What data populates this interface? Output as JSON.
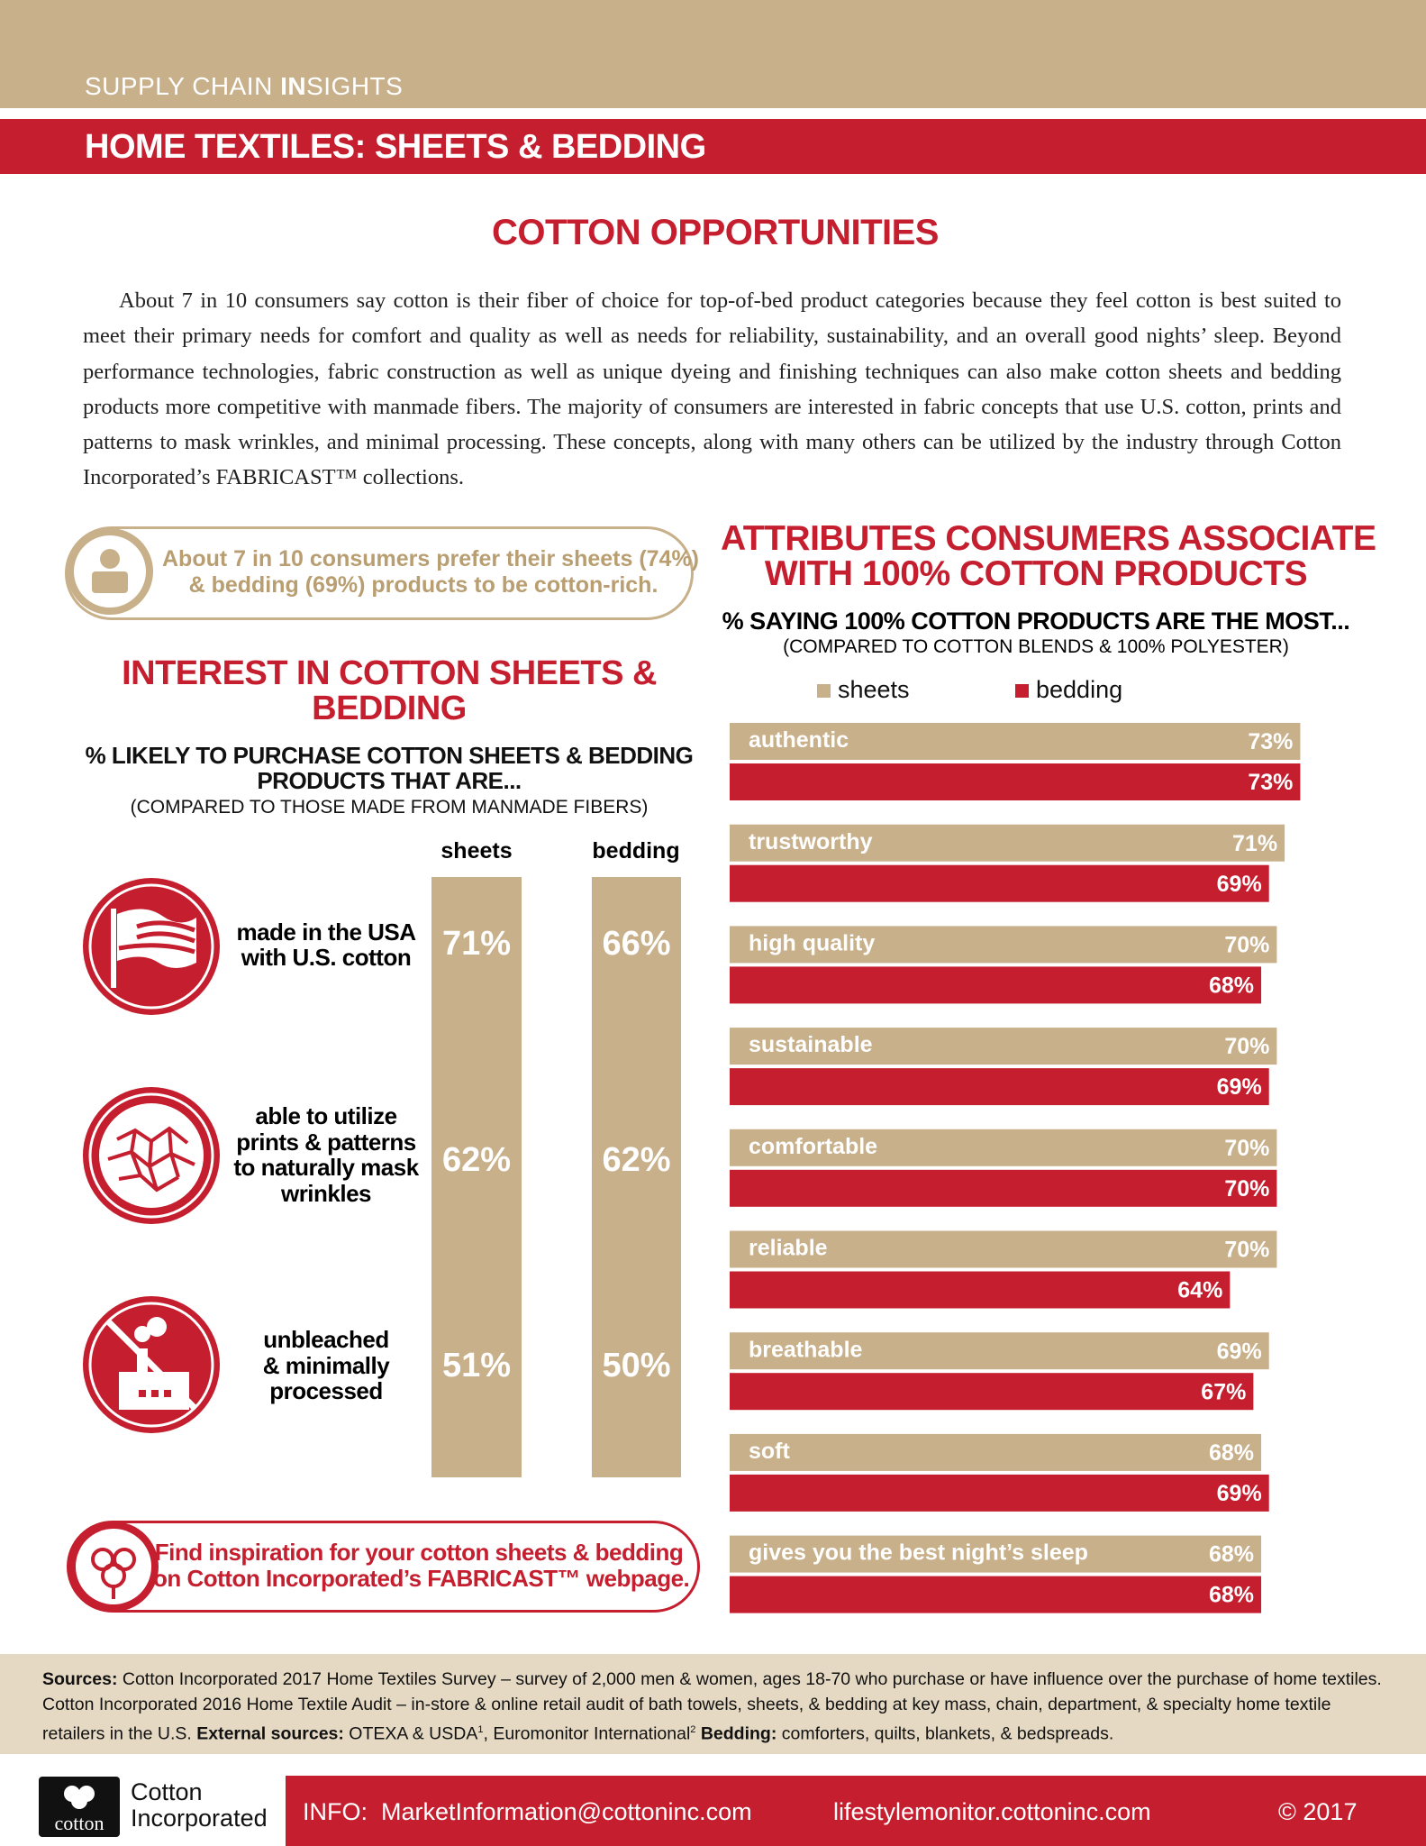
{
  "header": {
    "brand": [
      "SUPPLY CHAIN ",
      "IN",
      "SIGHTS"
    ],
    "title": "HOME TEXTILES: SHEETS & BEDDING"
  },
  "intro": {
    "heading": "COTTON OPPORTUNITIES",
    "text": "About 7 in 10 consumers say cotton is their fiber of choice for top-of-bed product categories because they feel cotton is best suited to meet their primary needs for comfort and quality as well as needs for reliability, sustainability, and an overall good nights’ sleep. Beyond performance technologies, fabric construction as well as unique dyeing and finishing techniques can also make cotton sheets and bedding products more competitive with manmade fibers. The majority of consumers are interested in fabric concepts that use U.S. cotton, prints and patterns to mask wrinkles, and minimal processing. These concepts, along with many others can be utilized by the industry through Cotton Incorporated’s FABRICAST™ collections."
  },
  "callout": [
    "About 7 in 10 consumers prefer their sheets (74%)",
    "& bedding (69%) products to be cotton-rich."
  ],
  "interest": {
    "title": [
      "INTEREST IN COTTON SHEETS &",
      "BEDDING"
    ],
    "subtitle": [
      "% LIKELY TO PURCHASE COTTON SHEETS & BEDDING",
      "PRODUCTS THAT ARE..."
    ],
    "note": "(COMPARED TO THOSE MADE FROM MANMADE FIBERS)",
    "columns": [
      "sheets",
      "bedding"
    ],
    "rows": [
      {
        "label": [
          "made in the USA",
          "with U.S. cotton"
        ],
        "values": [
          "71%",
          "66%"
        ]
      },
      {
        "label": [
          "able to utilize",
          "prints & patterns",
          "to naturally mask",
          "wrinkles"
        ],
        "values": [
          "62%",
          "62%"
        ]
      },
      {
        "label": [
          "unbleached",
          "& minimally",
          "processed"
        ],
        "values": [
          "51%",
          "50%"
        ]
      }
    ]
  },
  "inspiration": [
    "Find inspiration for your cotton sheets & bedding",
    "on Cotton Incorporated’s FABRICAST™ webpage."
  ],
  "chart_data": {
    "type": "bar",
    "orientation": "horizontal",
    "title": [
      "ATTRIBUTES CONSUMERS ASSOCIATE",
      "WITH 100% COTTON PRODUCTS"
    ],
    "subtitle": "% SAYING 100% COTTON PRODUCTS ARE THE MOST...",
    "note": "(COMPARED TO COTTON BLENDS & 100% POLYESTER)",
    "categories": [
      "authentic",
      "trustworthy",
      "high quality",
      "sustainable",
      "comfortable",
      "reliable",
      "breathable",
      "soft",
      "gives you the best night’s sleep"
    ],
    "series": [
      {
        "name": "sheets",
        "color": "#c8b08a",
        "values": [
          73,
          71,
          70,
          70,
          70,
          70,
          69,
          68,
          68
        ],
        "value_labels": [
          "73%",
          "71%",
          "70%",
          "70%",
          "70%",
          "70%",
          "69%",
          "68%",
          "68%"
        ]
      },
      {
        "name": "bedding",
        "color": "#c41e2f",
        "values": [
          73,
          69,
          68,
          69,
          70,
          64,
          67,
          69,
          68
        ],
        "value_labels": [
          "73%",
          "69%",
          "68%",
          "69%",
          "70%",
          "64%",
          "67%",
          "69%",
          "68%"
        ]
      }
    ],
    "legend": "top"
  },
  "footer": {
    "sources_label": "Sources:",
    "sources_text": " Cotton Incorporated 2017 Home Textiles Survey – survey of 2,000 men & women, ages 18-70 who purchase or have influence over the purchase of home textiles. Cotton Incorporated 2016 Home Textile Audit – in-store & online retail audit of bath towels, sheets, & bedding at key mass, chain, department, & specialty home textile retailers in the U.S. ",
    "external_label": "External sources:",
    "external_text_1": " OTEXA & USDA",
    "sup_1": "1",
    "external_text_2": ", Euromonitor International",
    "sup_2": "2",
    "bedding_label": " Bedding:",
    "bedding_text": " comforters, quilts, blankets, & bedspreads."
  },
  "bottom_bar": {
    "logo_word": "cotton",
    "company": [
      "Cotton",
      "Incorporated"
    ],
    "info_label": "INFO:",
    "email": "MarketInformation@cottoninc.com",
    "website": "lifestylemonitor.cottoninc.com",
    "copyright": "© 2017"
  }
}
